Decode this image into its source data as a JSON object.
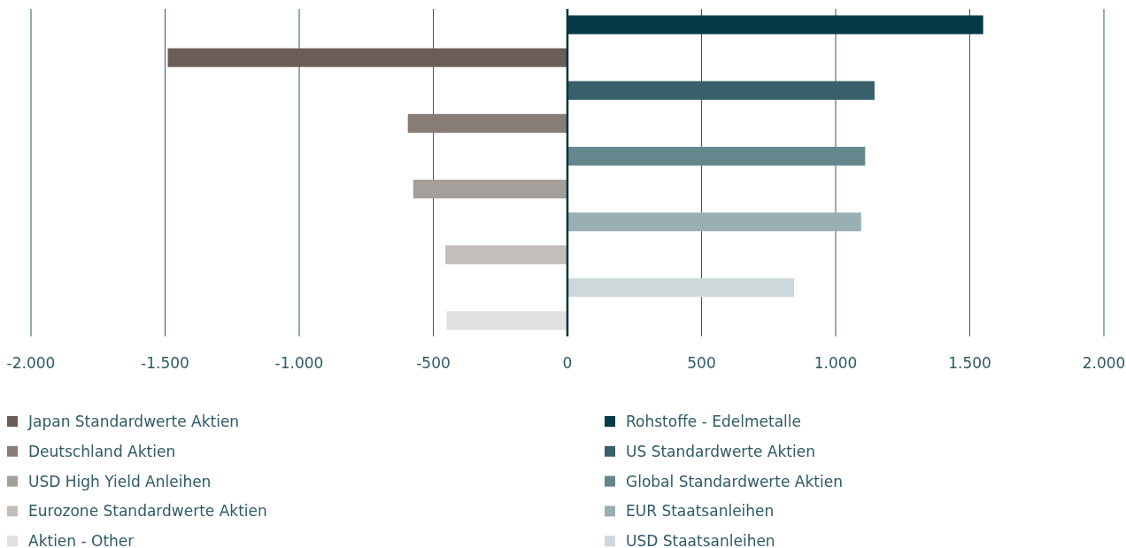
{
  "chart_data": {
    "type": "bar",
    "orientation": "horizontal",
    "categories": [
      null,
      null,
      null,
      null,
      null,
      null,
      null,
      null,
      null,
      null
    ],
    "series": [
      {
        "name": "Japan Standardwerte Aktien",
        "color": "#6b5e56",
        "values": [
          null,
          -1490,
          null,
          null,
          null,
          null,
          null,
          null,
          null,
          null
        ]
      },
      {
        "name": "Deutschland Aktien",
        "color": "#877c76",
        "values": [
          null,
          null,
          null,
          -595,
          null,
          null,
          null,
          null,
          null,
          null
        ]
      },
      {
        "name": "USD High Yield Anleihen",
        "color": "#a49f9b",
        "values": [
          null,
          null,
          null,
          null,
          null,
          -575,
          null,
          null,
          null,
          null
        ]
      },
      {
        "name": "Eurozone Standardwerte Aktien",
        "color": "#c4bebb",
        "values": [
          null,
          null,
          null,
          null,
          null,
          null,
          null,
          -455,
          null,
          null
        ]
      },
      {
        "name": "Aktien - Other",
        "color": "#e2e0df",
        "values": [
          null,
          null,
          null,
          null,
          null,
          null,
          null,
          null,
          null,
          -450
        ]
      },
      {
        "name": "Rohstoffe - Edelmetalle",
        "color": "#033a46",
        "values": [
          1550,
          null,
          null,
          null,
          null,
          null,
          null,
          null,
          null,
          null
        ]
      },
      {
        "name": "US Standardwerte Aktien",
        "color": "#37606a",
        "values": [
          null,
          null,
          1145,
          null,
          null,
          null,
          null,
          null,
          null,
          null
        ]
      },
      {
        "name": "Global Standardwerte Aktien",
        "color": "#66868d",
        "values": [
          null,
          null,
          null,
          null,
          1110,
          null,
          null,
          null,
          null,
          null
        ]
      },
      {
        "name": "EUR Staatsanleihen",
        "color": "#9aafb4",
        "values": [
          null,
          null,
          null,
          null,
          null,
          null,
          1095,
          null,
          null,
          null
        ]
      },
      {
        "name": "USD Staatsanleihen",
        "color": "#cdd8da",
        "values": [
          null,
          null,
          null,
          null,
          null,
          null,
          null,
          null,
          845,
          null
        ]
      }
    ],
    "xlim": [
      -2000,
      2000
    ],
    "xticks": [
      {
        "value": -2000,
        "label": "-2.000"
      },
      {
        "value": -1500,
        "label": "-1.500"
      },
      {
        "value": -1000,
        "label": "-1.000"
      },
      -500,
      0,
      500,
      {
        "value": 1000,
        "label": "1.000"
      },
      {
        "value": 1500,
        "label": "1.500"
      },
      {
        "value": 2000,
        "label": "2.000"
      }
    ],
    "grid": "x",
    "legend": "bottom"
  }
}
